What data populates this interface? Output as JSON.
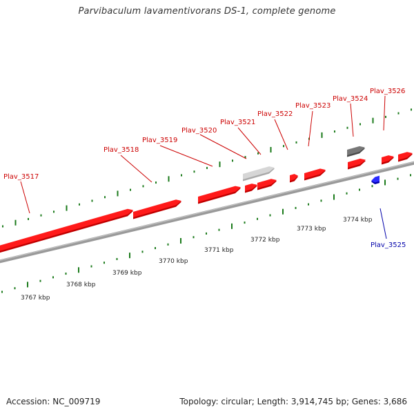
{
  "title": "Parvibaculum lavamentivorans DS-1, complete genome",
  "footer": {
    "accession": "Accession: NC_009719",
    "summary": "Topology: circular; Length: 3,914,745 bp; Genes: 3,686"
  },
  "colors": {
    "forward_gene": "#ff0000",
    "reverse_gene": "#0000ff",
    "rna_gene_dark": "#666666",
    "pseudo_gene_light": "#c8c8c8",
    "backbone": "#808080",
    "tick": "#1a7a1a",
    "forward_label": "#cc0000",
    "reverse_label": "#0000aa"
  },
  "scale_labels": [
    "3767 kbp",
    "3768 kbp",
    "3769 kbp",
    "3770 kbp",
    "3771 kbp",
    "3772 kbp",
    "3773 kbp",
    "3774 kbp"
  ],
  "gene_labels": [
    {
      "name": "Plav_3517",
      "strand": "forward"
    },
    {
      "name": "Plav_3518",
      "strand": "forward"
    },
    {
      "name": "Plav_3519",
      "strand": "forward"
    },
    {
      "name": "Plav_3520",
      "strand": "forward"
    },
    {
      "name": "Plav_3521",
      "strand": "forward"
    },
    {
      "name": "Plav_3522",
      "strand": "forward"
    },
    {
      "name": "Plav_3523",
      "strand": "forward"
    },
    {
      "name": "Plav_3524",
      "strand": "forward"
    },
    {
      "name": "Plav_3526",
      "strand": "forward"
    },
    {
      "name": "Plav_3525",
      "strand": "reverse"
    }
  ]
}
